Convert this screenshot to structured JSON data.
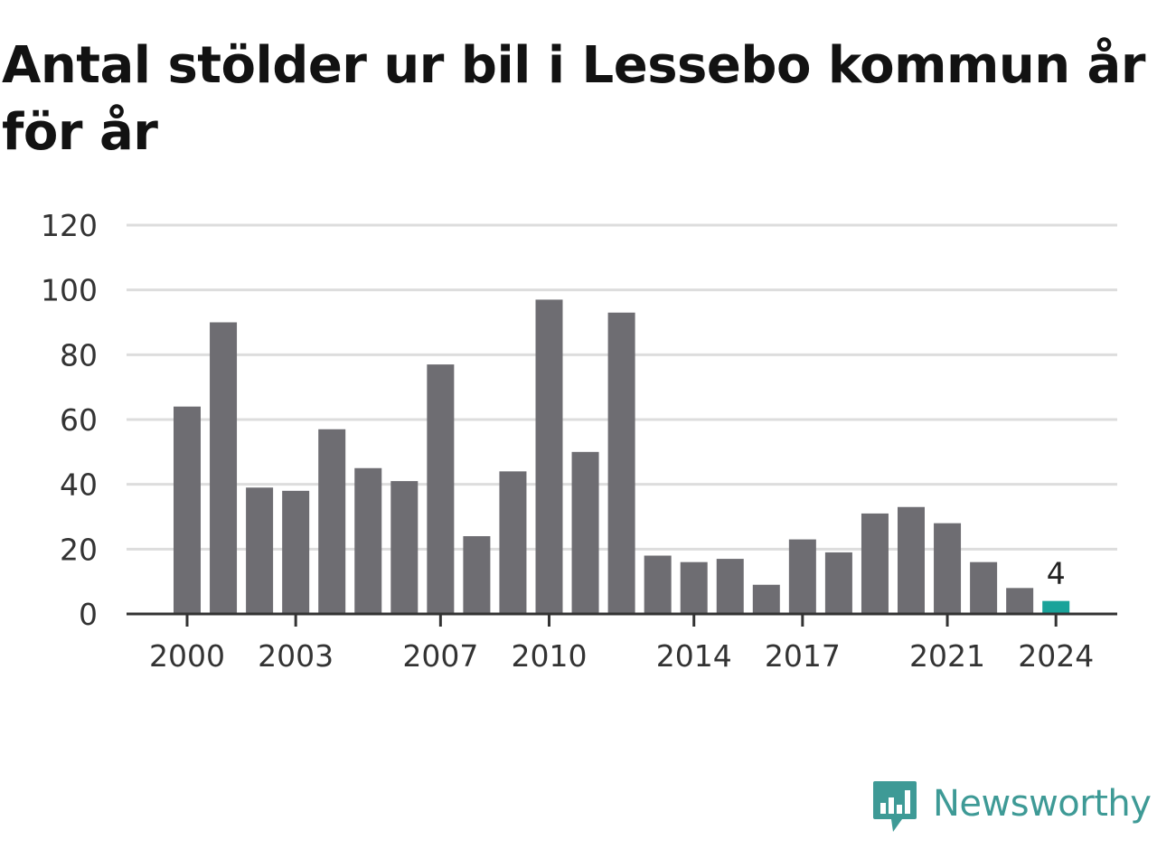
{
  "colors": {
    "bar": "#6e6d72",
    "highlight": "#1aa39a",
    "grid": "#dddddd",
    "axis": "#333333",
    "brand": "#3e9a96"
  },
  "brand": {
    "name": "Newsworthy",
    "icon": "newsworthy-logo-icon"
  },
  "chart_data": {
    "type": "bar",
    "title": "Antal stölder ur bil i Lessebo kommun år för år",
    "xlabel": "",
    "ylabel": "",
    "categories": [
      2000,
      2001,
      2002,
      2003,
      2004,
      2005,
      2006,
      2007,
      2008,
      2009,
      2010,
      2011,
      2012,
      2013,
      2014,
      2015,
      2016,
      2017,
      2018,
      2019,
      2020,
      2021,
      2022,
      2023,
      2024
    ],
    "values": [
      64,
      90,
      39,
      38,
      57,
      45,
      41,
      77,
      24,
      44,
      97,
      50,
      93,
      18,
      16,
      17,
      9,
      23,
      19,
      31,
      33,
      28,
      16,
      8,
      4
    ],
    "ylim": [
      0,
      120
    ],
    "yticks": [
      0,
      20,
      40,
      60,
      80,
      100,
      120
    ],
    "xticks": [
      2000,
      2003,
      2007,
      2010,
      2014,
      2017,
      2021,
      2024
    ],
    "grid": true,
    "legend": "none",
    "highlight": {
      "category": 2024,
      "label": "4"
    }
  }
}
